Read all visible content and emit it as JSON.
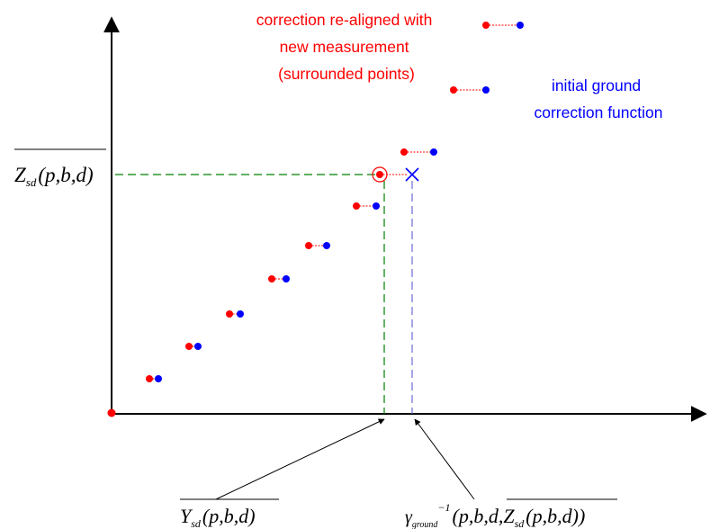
{
  "colors": {
    "axis": "#000000",
    "corrected": "#ff0000",
    "initial": "#0000ff",
    "y_guide": "#008000",
    "x_guide": "#6b6bd6"
  },
  "legend": {
    "corrected_label": [
      "correction re-aligned with",
      "new measurement",
      "(surrounded points)"
    ],
    "initial_label": [
      "initial ground",
      "correction function"
    ]
  },
  "labels": {
    "y_value": {
      "main": "Z",
      "sub": "sd",
      "args": "(p,b,d)"
    },
    "x_measured": {
      "main": "Y",
      "sub": "sd",
      "args": "(p,b,d)"
    },
    "x_inverse": {
      "gamma": "γ",
      "sub": "ground",
      "sup": "−1",
      "args_open": "(p,b,d,",
      "inner_main": "Z",
      "inner_sub": "sd",
      "inner_args": "(p,b,d)",
      "args_close": ")"
    }
  },
  "icons": {
    "measurement_marker": "circled-point-icon",
    "inverse_marker": "cross-icon"
  }
}
